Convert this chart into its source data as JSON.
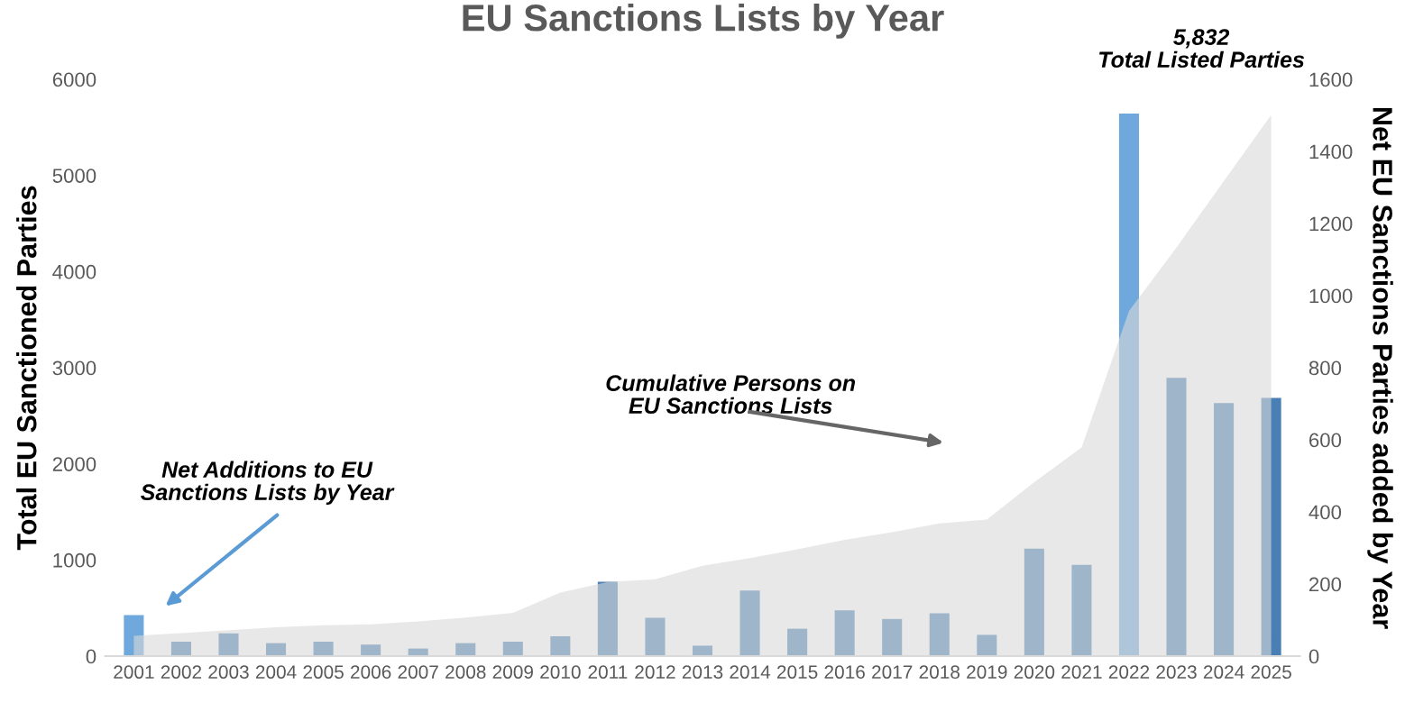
{
  "chart_data": {
    "type": "bar",
    "title": "EU Sanctions Lists by Year",
    "ylabel": "Total EU Sanctioned Parties",
    "y2label": "Net EU Sanctions Parties added by Year",
    "categories": [
      "2001",
      "2002",
      "2003",
      "2004",
      "2005",
      "2006",
      "2007",
      "2008",
      "2009",
      "2010",
      "2011",
      "2012",
      "2013",
      "2014",
      "2015",
      "2016",
      "2017",
      "2018",
      "2019",
      "2020",
      "2021",
      "2022",
      "2023",
      "2024",
      "2025"
    ],
    "series": [
      {
        "type": "area",
        "color": "#d9d9d9",
        "values": [
          210,
          240,
          270,
          300,
          320,
          330,
          360,
          400,
          450,
          660,
          770,
          800,
          940,
          1020,
          1110,
          1210,
          1290,
          1380,
          1420,
          1810,
          2170,
          3590,
          4250,
          4940,
          5630
        ]
      },
      {
        "axis": "y2",
        "color": "#4a7fb5",
        "colors": [
          "#6fa8dc",
          "#4a7fb5",
          "#4a7fb5",
          "#4a7fb5",
          "#4a7fb5",
          "#4a7fb5",
          "#4a7fb5",
          "#4a7fb5",
          "#4a7fb5",
          "#4a7fb5",
          "#4a7fb5",
          "#4a7fb5",
          "#4a7fb5",
          "#4a7fb5",
          "#4a7fb5",
          "#4a7fb5",
          "#4a7fb5",
          "#4a7fb5",
          "#4a7fb5",
          "#4a7fb5",
          "#4a7fb5",
          "#6fa8dc",
          "#4a7fb5",
          "#4a7fb5",
          "#4a7fb5"
        ],
        "values": [
          114,
          40,
          63,
          36,
          40,
          32,
          21,
          36,
          40,
          55,
          206,
          106,
          29,
          182,
          76,
          127,
          103,
          119,
          59,
          298,
          253,
          1505,
          772,
          702,
          716
        ]
      }
    ],
    "ylim": [
      0,
      6000
    ],
    "yticks": [
      0,
      1000,
      2000,
      3000,
      4000,
      5000,
      6000
    ],
    "y2lim": [
      0,
      1600
    ],
    "y2ticks": [
      0,
      200,
      400,
      600,
      800,
      1000,
      1200,
      1400,
      1600
    ],
    "annotations": [
      "Net Additions to EU\nSanctions Lists by Year",
      "Cumulative Persons on\nEU Sanctions Lists",
      "5,832\nTotal Listed Parties"
    ]
  }
}
